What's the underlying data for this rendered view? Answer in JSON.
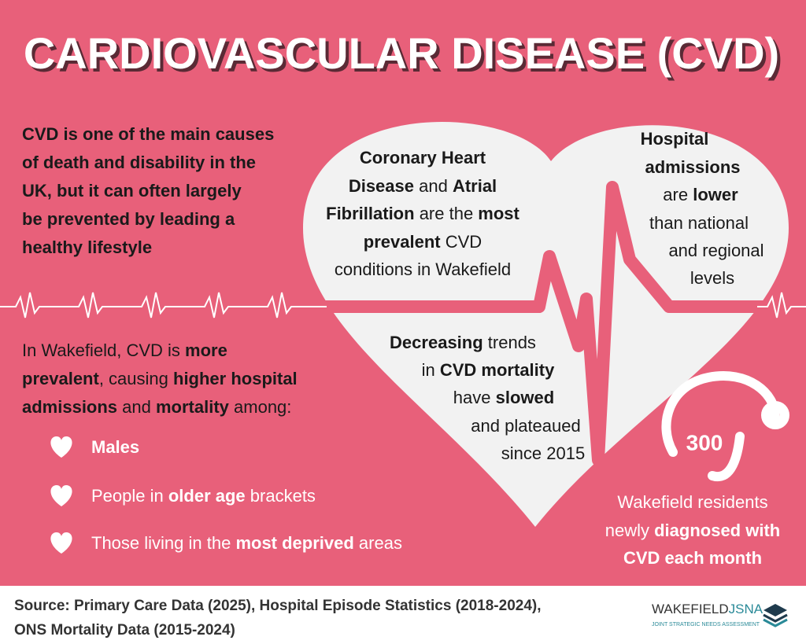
{
  "title": "CARDIOVASCULAR DISEASE (CVD)",
  "intro": [
    "CVD is one of the main causes",
    "of death and disability in the",
    "UK, but it can often largely",
    "be prevented by leading a",
    "healthy lifestyle"
  ],
  "wakefield": [
    [
      "In Wakefield, CVD is ",
      "more"
    ],
    [
      "prevalent",
      ", causing ",
      "higher hospital"
    ],
    [
      "admissions",
      " and ",
      "mortality",
      " among:"
    ]
  ],
  "groups": [
    [
      "Males"
    ],
    [
      "People in ",
      "older age",
      " brackets"
    ],
    [
      "Those living in the ",
      "most deprived",
      " areas"
    ]
  ],
  "heart": {
    "left": [
      [
        "Coronary Heart"
      ],
      [
        "Disease",
        " and ",
        "Atrial"
      ],
      [
        "Fibrillation",
        " are the ",
        "most"
      ],
      [
        "prevalent",
        " CVD"
      ],
      [
        "conditions in Wakefield"
      ]
    ],
    "right": [
      [
        "Hospital"
      ],
      [
        "admissions"
      ],
      [
        "are ",
        "lower"
      ],
      [
        "than national"
      ],
      [
        "and regional"
      ],
      [
        "levels"
      ]
    ],
    "middle": [
      [
        "Decreasing",
        " trends"
      ],
      [
        "in ",
        "CVD mortality"
      ],
      [
        "have ",
        "slowed"
      ],
      [
        "and plateaued"
      ],
      [
        "since 2015"
      ]
    ]
  },
  "stat": {
    "value": 300,
    "label": [
      [
        "Wakefield residents"
      ],
      [
        "newly ",
        "diagnosed with"
      ],
      [
        "CVD each month"
      ]
    ]
  },
  "source": [
    "Source: Primary Care Data (2025), Hospital Episode Statistics (2018-2024),",
    "ONS Mortality Data (2015-2024)"
  ],
  "logo": {
    "name": "WAKEFIELD",
    "brand": "JSNA",
    "tagline": "JOINT STRATEGIC NEEDS ASSESSMENT"
  }
}
